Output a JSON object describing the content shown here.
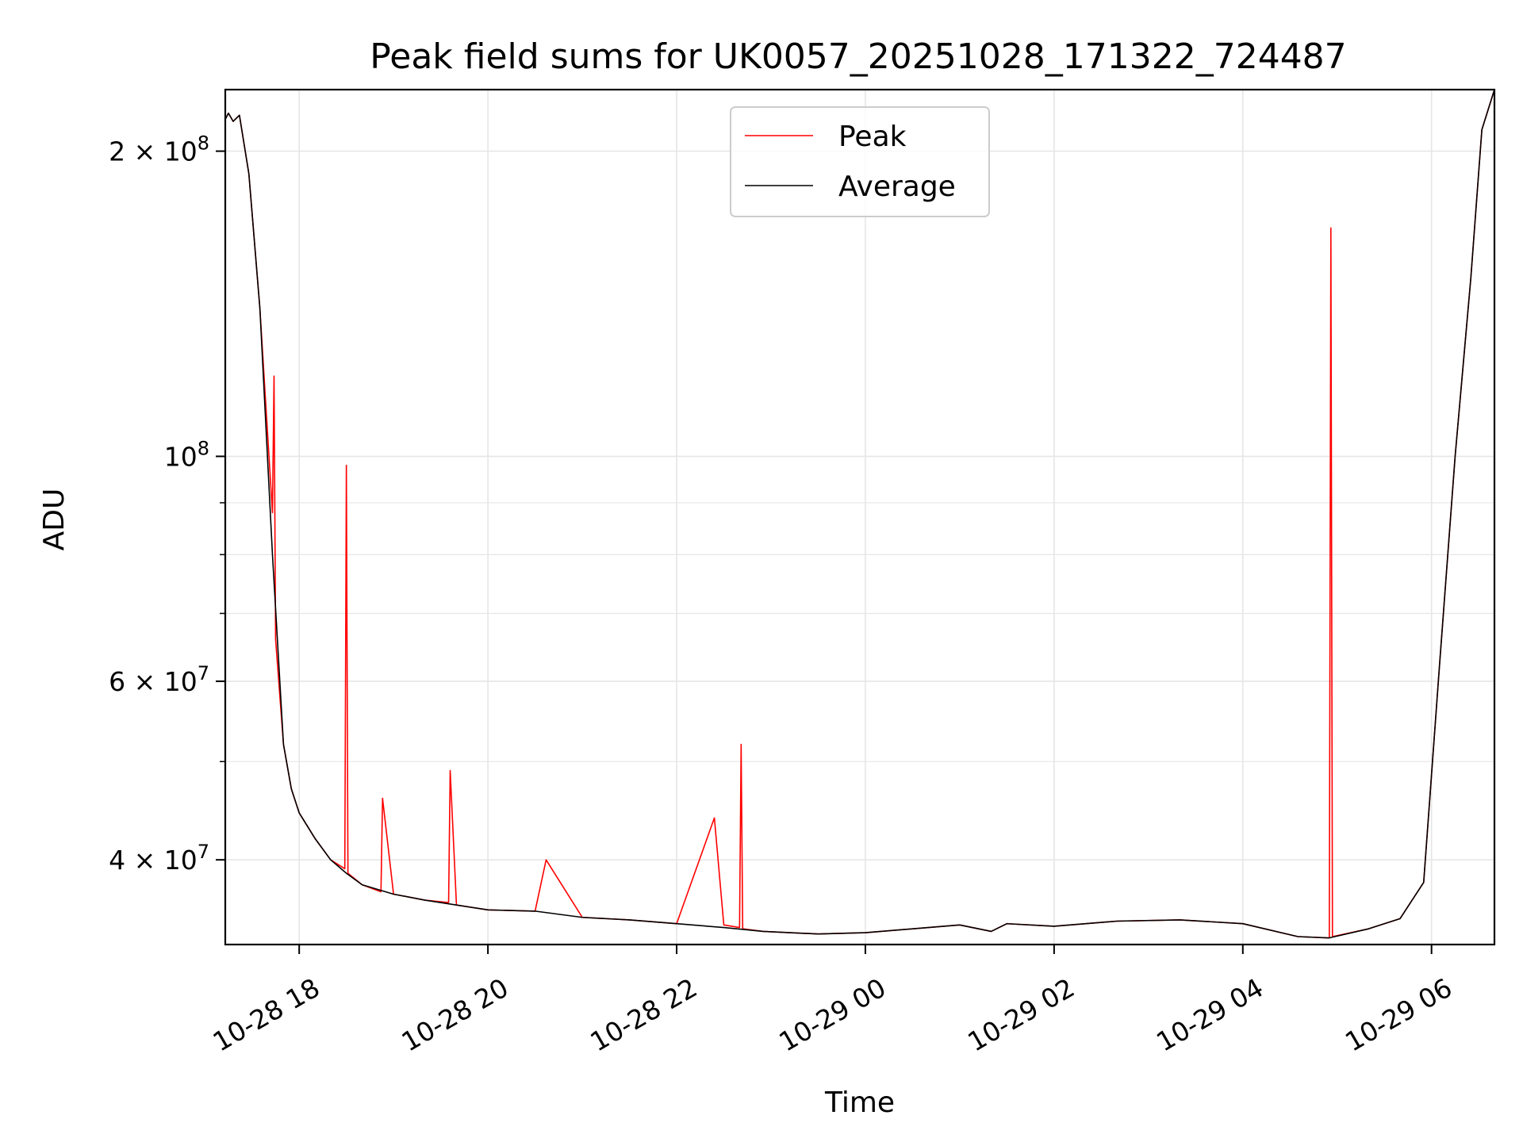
{
  "chart_data": {
    "type": "line",
    "title": "Peak field sums for UK0057_20251028_171322_724487",
    "xlabel": "Time",
    "ylabel": "ADU",
    "y_scale": "log",
    "xlim": [
      "2025-10-28 17:13",
      "2025-10-29 06:40"
    ],
    "ylim": [
      33000000,
      230000000
    ],
    "x_ticks": [
      {
        "value": "2025-10-28 18:00",
        "label": "10-28 18"
      },
      {
        "value": "2025-10-28 20:00",
        "label": "10-28 20"
      },
      {
        "value": "2025-10-28 22:00",
        "label": "10-28 22"
      },
      {
        "value": "2025-10-29 00:00",
        "label": "10-29 00"
      },
      {
        "value": "2025-10-29 02:00",
        "label": "10-29 02"
      },
      {
        "value": "2025-10-29 04:00",
        "label": "10-29 04"
      },
      {
        "value": "2025-10-29 06:00",
        "label": "10-29 06"
      }
    ],
    "y_ticks_major": [
      {
        "value": 40000000,
        "label": "4 × 10",
        "exp": "7"
      },
      {
        "value": 60000000,
        "label": "6 × 10",
        "exp": "7"
      },
      {
        "value": 100000000,
        "label": "10",
        "exp": "8"
      },
      {
        "value": 200000000,
        "label": "2 × 10",
        "exp": "8"
      }
    ],
    "y_ticks_minor": [
      50000000,
      70000000,
      80000000,
      90000000
    ],
    "grid": true,
    "legend": "upper center",
    "series": [
      {
        "name": "Peak",
        "color": "#ff0000",
        "x": [
          "2025-10-28 17:13",
          "2025-10-28 17:15",
          "2025-10-28 17:18",
          "2025-10-28 17:22",
          "2025-10-28 17:28",
          "2025-10-28 17:35",
          "2025-10-28 17:43",
          "2025-10-28 17:44",
          "2025-10-28 17:45",
          "2025-10-28 17:50",
          "2025-10-28 17:55",
          "2025-10-28 18:00",
          "2025-10-28 18:10",
          "2025-10-28 18:20",
          "2025-10-28 18:29",
          "2025-10-28 18:30",
          "2025-10-28 18:31",
          "2025-10-28 18:40",
          "2025-10-28 18:52",
          "2025-10-28 18:53",
          "2025-10-28 19:00",
          "2025-10-28 19:20",
          "2025-10-28 19:35",
          "2025-10-28 19:36",
          "2025-10-28 19:40",
          "2025-10-28 20:00",
          "2025-10-28 20:30",
          "2025-10-28 20:37",
          "2025-10-28 21:00",
          "2025-10-28 21:30",
          "2025-10-28 22:00",
          "2025-10-28 22:24",
          "2025-10-28 22:30",
          "2025-10-28 22:40",
          "2025-10-28 22:41",
          "2025-10-28 22:42",
          "2025-10-28 22:55",
          "2025-10-28 23:30",
          "2025-10-29 00:00",
          "2025-10-29 00:40",
          "2025-10-29 01:00",
          "2025-10-29 01:20",
          "2025-10-29 01:30",
          "2025-10-29 02:00",
          "2025-10-29 02:40",
          "2025-10-29 03:20",
          "2025-10-29 04:00",
          "2025-10-29 04:35",
          "2025-10-29 04:55",
          "2025-10-29 04:56",
          "2025-10-29 04:57",
          "2025-10-29 05:20",
          "2025-10-29 05:40",
          "2025-10-29 05:55",
          "2025-10-29 06:05",
          "2025-10-29 06:15",
          "2025-10-29 06:25",
          "2025-10-29 06:32",
          "2025-10-29 06:40"
        ],
        "y": [
          215000000,
          218000000,
          214000000,
          217000000,
          190000000,
          140000000,
          88000000,
          120000000,
          66000000,
          52000000,
          47000000,
          44500000,
          42000000,
          40000000,
          39200000,
          98000000,
          38800000,
          37800000,
          37200000,
          46000000,
          37000000,
          36500000,
          36300000,
          49000000,
          36100000,
          35700000,
          35600000,
          40000000,
          35100000,
          34900000,
          34600000,
          44000000,
          34500000,
          34300000,
          52000000,
          34200000,
          34000000,
          33800000,
          33900000,
          34300000,
          34500000,
          34000000,
          34600000,
          34400000,
          34800000,
          34900000,
          34600000,
          33600000,
          33500000,
          168000000,
          33600000,
          34200000,
          35000000,
          38000000,
          62000000,
          100000000,
          150000000,
          210000000,
          230000000
        ]
      },
      {
        "name": "Average",
        "color": "#000000",
        "x": [
          "2025-10-28 17:13",
          "2025-10-28 17:15",
          "2025-10-28 17:18",
          "2025-10-28 17:22",
          "2025-10-28 17:28",
          "2025-10-28 17:35",
          "2025-10-28 17:43",
          "2025-10-28 17:50",
          "2025-10-28 17:55",
          "2025-10-28 18:00",
          "2025-10-28 18:10",
          "2025-10-28 18:20",
          "2025-10-28 18:30",
          "2025-10-28 18:40",
          "2025-10-28 19:00",
          "2025-10-28 19:20",
          "2025-10-28 19:40",
          "2025-10-28 20:00",
          "2025-10-28 20:30",
          "2025-10-28 21:00",
          "2025-10-28 21:30",
          "2025-10-28 22:00",
          "2025-10-28 22:30",
          "2025-10-28 22:55",
          "2025-10-28 23:30",
          "2025-10-29 00:00",
          "2025-10-29 00:40",
          "2025-10-29 01:00",
          "2025-10-29 01:20",
          "2025-10-29 01:30",
          "2025-10-29 02:00",
          "2025-10-29 02:40",
          "2025-10-29 03:20",
          "2025-10-29 04:00",
          "2025-10-29 04:35",
          "2025-10-29 04:55",
          "2025-10-29 05:20",
          "2025-10-29 05:40",
          "2025-10-29 05:55",
          "2025-10-29 06:05",
          "2025-10-29 06:15",
          "2025-10-29 06:25",
          "2025-10-29 06:32",
          "2025-10-29 06:40"
        ],
        "y": [
          215000000,
          218000000,
          214000000,
          217000000,
          190000000,
          140000000,
          80000000,
          52000000,
          47000000,
          44500000,
          42000000,
          40000000,
          38800000,
          37800000,
          37000000,
          36500000,
          36100000,
          35700000,
          35600000,
          35100000,
          34900000,
          34600000,
          34300000,
          34000000,
          33800000,
          33900000,
          34300000,
          34500000,
          34000000,
          34600000,
          34400000,
          34800000,
          34900000,
          34600000,
          33600000,
          33500000,
          34200000,
          35000000,
          38000000,
          62000000,
          100000000,
          150000000,
          210000000,
          230000000
        ]
      }
    ]
  }
}
